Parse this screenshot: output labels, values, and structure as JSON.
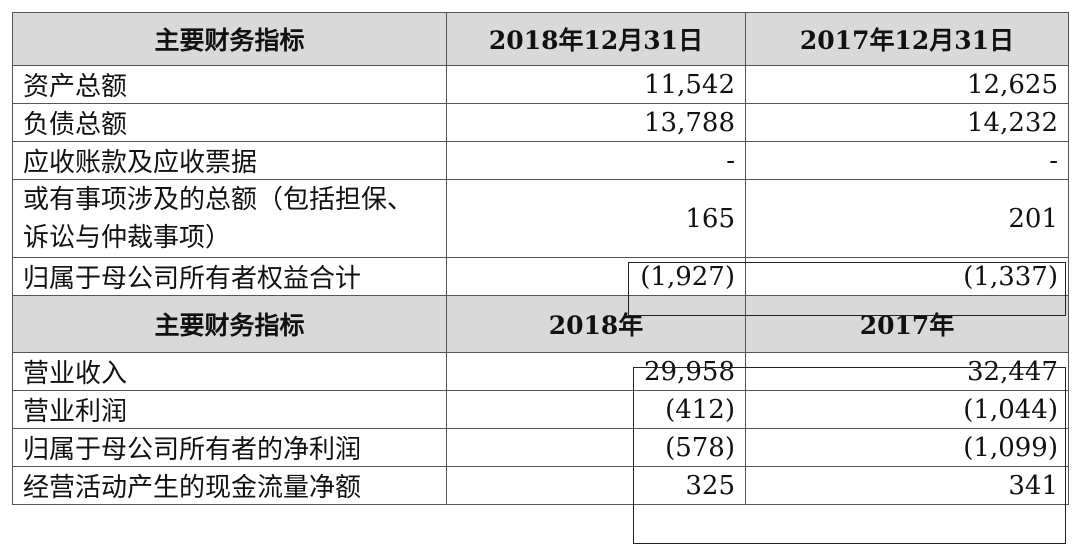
{
  "table": {
    "header1": [
      "主要财务指标",
      "2018年12月31日",
      "2017年12月31日"
    ],
    "rows1": [
      {
        "label": "资产总额",
        "v2018": "11,542",
        "v2017": "12,625"
      },
      {
        "label": "负债总额",
        "v2018": "13,788",
        "v2017": "14,232"
      },
      {
        "label": "应收账款及应收票据",
        "v2018": "-",
        "v2017": "-"
      },
      {
        "label": "或有事项涉及的总额（包括担保、诉讼与仲裁事项）",
        "v2018": "165",
        "v2017": "201"
      },
      {
        "label": "归属于母公司所有者权益合计",
        "v2018": "(1,927)",
        "v2017": "(1,337)"
      }
    ],
    "header2": [
      "主要财务指标",
      "2018年",
      "2017年"
    ],
    "rows2": [
      {
        "label": "营业收入",
        "v2018": "29,958",
        "v2017": "32,447"
      },
      {
        "label": "营业利润",
        "v2018": "(412)",
        "v2017": "(1,044)"
      },
      {
        "label": "归属于母公司所有者的净利润",
        "v2018": "(578)",
        "v2017": "(1,099)"
      },
      {
        "label": "经营活动产生的现金流量净额",
        "v2018": "325",
        "v2017": "341"
      }
    ]
  }
}
